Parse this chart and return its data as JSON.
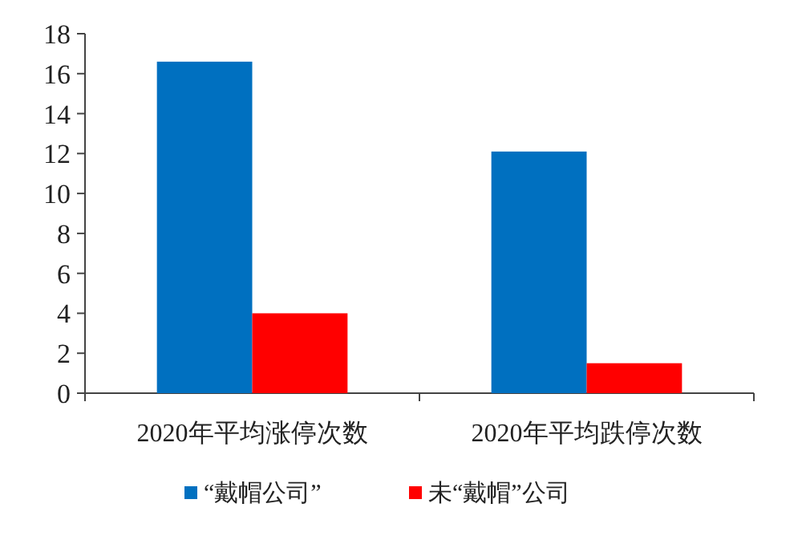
{
  "chart_data": {
    "type": "bar",
    "categories": [
      "2020年平均涨停次数",
      "2020年平均跌停次数"
    ],
    "series": [
      {
        "name": "“戴帽公司”",
        "color": "#0070c0",
        "values": [
          16.6,
          12.1
        ]
      },
      {
        "name": "未“戴帽”公司",
        "color": "#ff0000",
        "values": [
          4.0,
          1.5
        ]
      }
    ],
    "ylim": [
      0,
      18
    ],
    "yticks": [
      0,
      2,
      4,
      6,
      8,
      10,
      12,
      14,
      16,
      18
    ],
    "legend": "bottom"
  }
}
